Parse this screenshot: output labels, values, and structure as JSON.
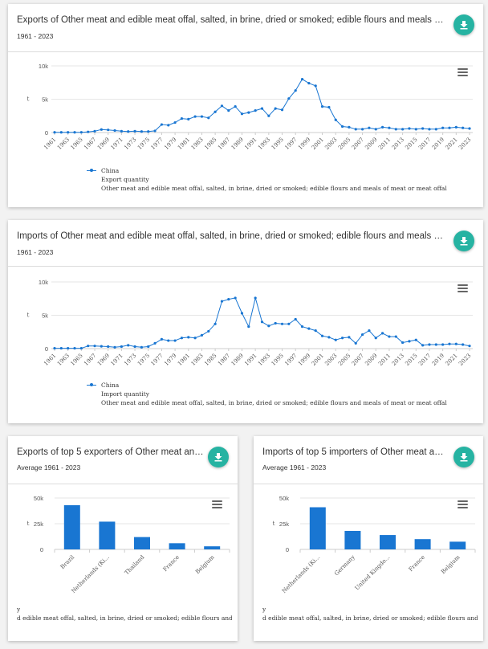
{
  "cards": {
    "exports_time": {
      "title": "Exports of Other meat and edible meat offal, salted, in brine, dried or smoked; edible flours and meals of meat or m...",
      "subtitle": "1961 - 2023",
      "legend": {
        "series": "China",
        "measure": "Export quantity",
        "item": "Other meat and edible meat offal, salted, in brine, dried or smoked; edible flours and meals of meat or meat offal"
      }
    },
    "imports_time": {
      "title": "Imports of Other meat and edible meat offal, salted, in brine, dried or smoked; edible flours and meals of meat or m...",
      "subtitle": "1961 - 2023",
      "legend": {
        "series": "China",
        "measure": "Import quantity",
        "item": "Other meat and edible meat offal, salted, in brine, dried or smoked; edible flours and meals of meat or meat offal"
      }
    },
    "top_exporters": {
      "title": "Exports of top 5 exporters of Other meat and edi...",
      "subtitle": "Average 1961 - 2023",
      "note_1": "y",
      "note_2": "d edible meat offal, salted, in brine, dried or smoked; edible flours and meals o"
    },
    "top_importers": {
      "title": "Imports of top 5 importers of Other meat and ed...",
      "subtitle": "Average 1961 - 2023",
      "note_1": "y",
      "note_2": "d edible meat offal, salted, in brine, dried or smoked; edible flours and meals o"
    }
  },
  "icons": {
    "download": "download-icon",
    "menu": "hamburger-menu-icon"
  },
  "colors": {
    "series": "#1976d2",
    "button": "#26b3a2"
  },
  "chart_data": [
    {
      "type": "line",
      "title": "Exports of Other meat and edible meat offal, salted, in brine, dried or smoked; edible flours and meals of meat or m...",
      "subtitle": "1961 - 2023",
      "ylabel": "t",
      "ylim": [
        0,
        10000
      ],
      "yticks": [
        "0",
        "5k",
        "10k"
      ],
      "xtick_labels": [
        "1961",
        "1963",
        "1965",
        "1967",
        "1969",
        "1971",
        "1973",
        "1975",
        "1977",
        "1979",
        "1981",
        "1983",
        "1985",
        "1987",
        "1989",
        "1991",
        "1993",
        "1995",
        "1997",
        "1999",
        "2001",
        "2003",
        "2005",
        "2007",
        "2009",
        "2011",
        "2013",
        "2015",
        "2017",
        "2019",
        "2021",
        "2023"
      ],
      "x": [
        1961,
        1962,
        1963,
        1964,
        1965,
        1966,
        1967,
        1968,
        1969,
        1970,
        1971,
        1972,
        1973,
        1974,
        1975,
        1976,
        1977,
        1978,
        1979,
        1980,
        1981,
        1982,
        1983,
        1984,
        1985,
        1986,
        1987,
        1988,
        1989,
        1990,
        1991,
        1992,
        1993,
        1994,
        1995,
        1996,
        1997,
        1998,
        1999,
        2000,
        2001,
        2002,
        2003,
        2004,
        2005,
        2006,
        2007,
        2008,
        2009,
        2010,
        2011,
        2012,
        2013,
        2014,
        2015,
        2016,
        2017,
        2018,
        2019,
        2020,
        2021,
        2022,
        2023
      ],
      "series": [
        {
          "name": "China",
          "values": [
            30,
            30,
            30,
            30,
            40,
            100,
            200,
            450,
            400,
            300,
            200,
            150,
            200,
            150,
            150,
            250,
            1200,
            1100,
            1500,
            2100,
            2000,
            2400,
            2400,
            2200,
            3100,
            4000,
            3300,
            3900,
            2800,
            3000,
            3300,
            3600,
            2500,
            3600,
            3400,
            5100,
            6300,
            8000,
            7400,
            7000,
            3900,
            3800,
            1900,
            900,
            800,
            500,
            500,
            700,
            500,
            800,
            700,
            500,
            500,
            600,
            500,
            600,
            500,
            500,
            700,
            700,
            800,
            700,
            600
          ]
        }
      ],
      "legend": "bottom-left"
    },
    {
      "type": "line",
      "title": "Imports of Other meat and edible meat offal, salted, in brine, dried or smoked; edible flours and meals of meat or m...",
      "subtitle": "1961 - 2023",
      "ylabel": "t",
      "ylim": [
        0,
        10000
      ],
      "yticks": [
        "0",
        "5k",
        "10k"
      ],
      "xtick_labels": [
        "1961",
        "1963",
        "1965",
        "1967",
        "1969",
        "1971",
        "1973",
        "1975",
        "1977",
        "1979",
        "1981",
        "1983",
        "1985",
        "1987",
        "1989",
        "1991",
        "1993",
        "1995",
        "1997",
        "1999",
        "2001",
        "2003",
        "2005",
        "2007",
        "2009",
        "2011",
        "2013",
        "2015",
        "2017",
        "2019",
        "2021",
        "2023"
      ],
      "x": [
        1961,
        1962,
        1963,
        1964,
        1965,
        1966,
        1967,
        1968,
        1969,
        1970,
        1971,
        1972,
        1973,
        1974,
        1975,
        1976,
        1977,
        1978,
        1979,
        1980,
        1981,
        1982,
        1983,
        1984,
        1985,
        1986,
        1987,
        1988,
        1989,
        1990,
        1991,
        1992,
        1993,
        1994,
        1995,
        1996,
        1997,
        1998,
        1999,
        2000,
        2001,
        2002,
        2003,
        2004,
        2005,
        2006,
        2007,
        2008,
        2009,
        2010,
        2011,
        2012,
        2013,
        2014,
        2015,
        2016,
        2017,
        2018,
        2019,
        2020,
        2021,
        2022,
        2023
      ],
      "series": [
        {
          "name": "China",
          "values": [
            50,
            50,
            50,
            50,
            50,
            400,
            400,
            350,
            300,
            200,
            300,
            500,
            300,
            200,
            300,
            800,
            1400,
            1200,
            1200,
            1600,
            1700,
            1600,
            2000,
            2600,
            3700,
            7100,
            7400,
            7600,
            5300,
            3300,
            7600,
            4000,
            3400,
            3800,
            3700,
            3700,
            4400,
            3300,
            3000,
            2700,
            1900,
            1700,
            1300,
            1600,
            1700,
            800,
            2100,
            2700,
            1600,
            2300,
            1800,
            1800,
            900,
            1100,
            1300,
            500,
            600,
            600,
            600,
            700,
            700,
            600,
            400
          ]
        }
      ],
      "legend": "bottom-left"
    },
    {
      "type": "bar",
      "title": "Exports of top 5 exporters of Other meat and edi...",
      "subtitle": "Average 1961 - 2023",
      "ylabel": "t",
      "ylim": [
        0,
        50000
      ],
      "yticks": [
        "0",
        "25k",
        "50k"
      ],
      "categories": [
        "Brazil",
        "Netherlands (Ki...",
        "Thailand",
        "France",
        "Belgium"
      ],
      "values": [
        43000,
        27000,
        12000,
        6000,
        3000
      ]
    },
    {
      "type": "bar",
      "title": "Imports of top 5 importers of Other meat and ed...",
      "subtitle": "Average 1961 - 2023",
      "ylabel": "t",
      "ylim": [
        0,
        50000
      ],
      "yticks": [
        "0",
        "25k",
        "50k"
      ],
      "categories": [
        "Netherlands (Ki...",
        "Germany",
        "United Kingdo...",
        "France",
        "Belgium"
      ],
      "values": [
        41000,
        18000,
        14000,
        10000,
        7500
      ]
    }
  ]
}
